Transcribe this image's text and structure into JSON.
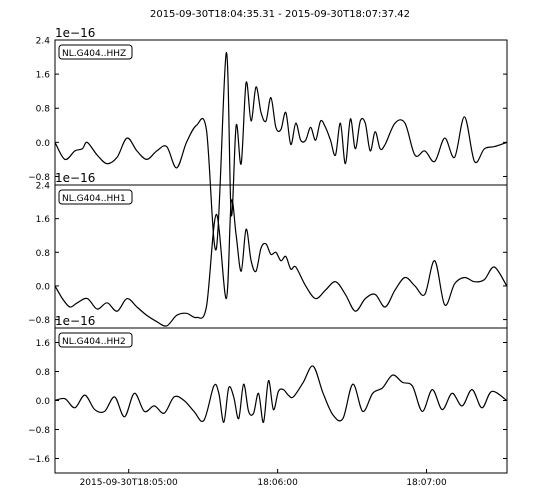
{
  "chart_data": [
    {
      "type": "line",
      "title": "2015-09-30T18:04:35.31  -  2015-09-30T18:07:37.42",
      "offset_label": "1e−16",
      "channel_label": "NL.G404..HHZ",
      "ylim": [
        -1.0,
        2.4
      ],
      "yticks": [
        -0.8,
        0.0,
        0.8,
        1.6,
        2.4
      ],
      "ytick_labels": [
        "−0.8",
        "0.0",
        "0.8",
        "1.6",
        "2.4"
      ],
      "xlim": [
        0,
        182.11
      ],
      "grid": false,
      "color": "#000000",
      "x": [
        0,
        4,
        8,
        11,
        13,
        17,
        21,
        25,
        29,
        33,
        37,
        41,
        45,
        49,
        53,
        57,
        61,
        65,
        69,
        71,
        73,
        75,
        77,
        79,
        81,
        83,
        85,
        87,
        89,
        91,
        93,
        95,
        97,
        99,
        101,
        103,
        105,
        107,
        109,
        111,
        113,
        115,
        117,
        119,
        121,
        123,
        125,
        127,
        129,
        131,
        133,
        137,
        141,
        145,
        149,
        153,
        157,
        161,
        165,
        169,
        173,
        177,
        182
      ],
      "y": [
        0.0,
        -0.4,
        -0.2,
        -0.15,
        0.0,
        -0.3,
        -0.5,
        -0.35,
        0.1,
        -0.2,
        -0.4,
        -0.2,
        -0.1,
        -0.6,
        0.0,
        0.4,
        0.3,
        -2.5,
        2.1,
        -1.7,
        0.4,
        -0.5,
        1.4,
        0.5,
        1.3,
        0.7,
        0.5,
        1.05,
        0.35,
        0.3,
        0.7,
        -0.05,
        0.45,
        0.05,
        0.05,
        0.35,
        0.05,
        0.5,
        0.35,
        0.05,
        -0.3,
        0.45,
        -0.5,
        0.55,
        -0.15,
        0.5,
        0.45,
        -0.2,
        0.25,
        -0.15,
        -0.05,
        0.45,
        0.45,
        -0.3,
        -0.2,
        -0.45,
        0.1,
        -0.35,
        0.6,
        -0.45,
        -0.15,
        -0.1,
        0.0
      ]
    },
    {
      "type": "line",
      "offset_label": "1e−16",
      "channel_label": "NL.G404..HH1",
      "ylim": [
        -1.0,
        2.4
      ],
      "yticks": [
        -0.8,
        0.0,
        0.8,
        1.6,
        2.4
      ],
      "ytick_labels": [
        "−0.8",
        "0.0",
        "0.8",
        "1.6",
        "2.4"
      ],
      "xlim": [
        0,
        182.11
      ],
      "grid": false,
      "color": "#000000",
      "x": [
        0,
        3,
        6,
        9,
        13,
        17,
        21,
        25,
        29,
        33,
        37,
        41,
        45,
        49,
        53,
        57,
        61,
        65,
        69,
        71,
        73,
        75,
        77,
        79,
        81,
        83,
        85,
        87,
        89,
        91,
        93,
        95,
        97,
        101,
        105,
        109,
        113,
        117,
        121,
        125,
        129,
        133,
        137,
        141,
        145,
        149,
        153,
        157,
        161,
        165,
        169,
        173,
        177,
        182
      ],
      "y": [
        0.0,
        -0.3,
        -0.5,
        -0.4,
        -0.3,
        -0.55,
        -0.4,
        -0.6,
        -0.3,
        -0.5,
        -0.7,
        -0.85,
        -0.95,
        -0.7,
        -0.65,
        -0.75,
        -0.5,
        1.7,
        -0.3,
        2.0,
        1.2,
        0.35,
        1.35,
        0.6,
        0.35,
        0.9,
        1.0,
        0.75,
        0.8,
        0.6,
        0.7,
        0.4,
        0.45,
        0.0,
        -0.3,
        -0.1,
        0.1,
        -0.2,
        -0.6,
        -0.3,
        -0.2,
        -0.5,
        -0.1,
        0.2,
        0.0,
        -0.2,
        0.6,
        -0.45,
        0.05,
        0.2,
        0.1,
        0.15,
        0.45,
        0.0
      ]
    },
    {
      "type": "line",
      "offset_label": "1e−16",
      "channel_label": "NL.G404..HH2",
      "ylim": [
        -2.0,
        2.0
      ],
      "yticks": [
        -1.6,
        -0.8,
        0.0,
        0.8,
        1.6
      ],
      "ytick_labels": [
        "−1.6",
        "−0.8",
        "0.0",
        "0.8",
        "1.6"
      ],
      "xlim": [
        0,
        182.11
      ],
      "xticks": [
        29.69,
        89.69,
        149.69
      ],
      "xtick_labels": [
        "2015-09-30T18:05:00",
        "18:06:00",
        "18:07:00"
      ],
      "grid": false,
      "color": "#000000",
      "x": [
        0,
        4,
        8,
        12,
        16,
        20,
        24,
        28,
        32,
        36,
        40,
        44,
        48,
        52,
        56,
        60,
        64,
        66,
        68,
        70,
        72,
        74,
        76,
        78,
        80,
        82,
        84,
        86,
        88,
        90,
        92,
        94,
        96,
        100,
        104,
        108,
        112,
        116,
        120,
        124,
        128,
        132,
        136,
        140,
        144,
        148,
        152,
        156,
        160,
        164,
        168,
        172,
        176,
        182
      ],
      "y": [
        0.0,
        0.05,
        -0.2,
        0.15,
        -0.25,
        -0.3,
        0.1,
        -0.45,
        0.2,
        -0.3,
        -0.15,
        -0.35,
        0.1,
        0.0,
        -0.3,
        -0.55,
        0.4,
        0.2,
        -0.6,
        0.35,
        0.1,
        -0.5,
        0.45,
        -0.3,
        -0.35,
        0.2,
        -0.6,
        0.55,
        -0.25,
        0.25,
        0.3,
        0.15,
        0.1,
        0.5,
        0.95,
        0.2,
        -0.4,
        -0.5,
        0.45,
        -0.3,
        0.2,
        0.35,
        0.7,
        0.5,
        0.4,
        -0.3,
        0.3,
        -0.25,
        0.2,
        -0.15,
        0.3,
        -0.2,
        0.25,
        0.0
      ]
    }
  ]
}
